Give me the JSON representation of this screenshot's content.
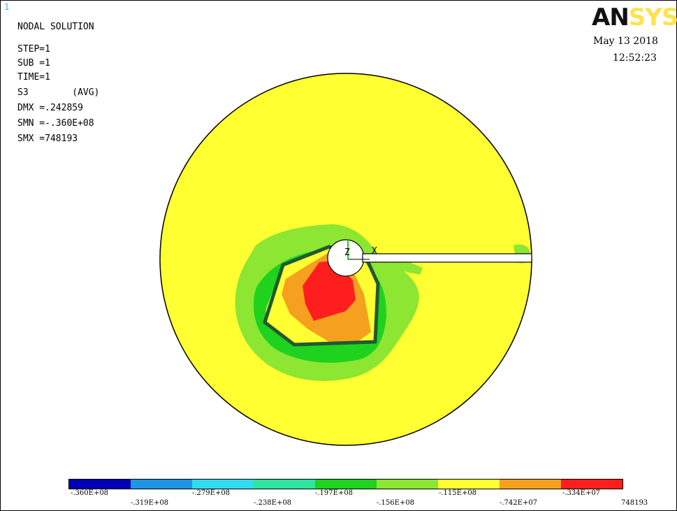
{
  "window": {
    "number": "1"
  },
  "logo": {
    "an": "AN",
    "sys": "SYS"
  },
  "datetime": {
    "date": "May 13 2018",
    "time": "12:52:23"
  },
  "info": {
    "title": "NODAL SOLUTION",
    "step": "STEP=1",
    "sub": "SUB =1",
    "time": "TIME=1",
    "s3": "S3        (AVG)",
    "dmx": "DMX =.242859",
    "smn": "SMN =-.360E+08",
    "smx": "SMX =748193"
  },
  "axis_triad": {
    "z": "Z",
    "x": "X"
  },
  "legend": {
    "colors": [
      "#0000b4",
      "#1e96e6",
      "#32dcf0",
      "#2ee6a0",
      "#1ed21e",
      "#8ce632",
      "#ffff32",
      "#f5a01e",
      "#ff1e1e"
    ],
    "labels_top": [
      "-.360E+08",
      "-.279E+08",
      "-.197E+08",
      "-.115E+08",
      "-.334E+07"
    ],
    "labels_bottom": [
      "-.319E+08",
      "-.238E+08",
      "-.156E+08",
      "-.742E+07",
      "748193"
    ]
  }
}
